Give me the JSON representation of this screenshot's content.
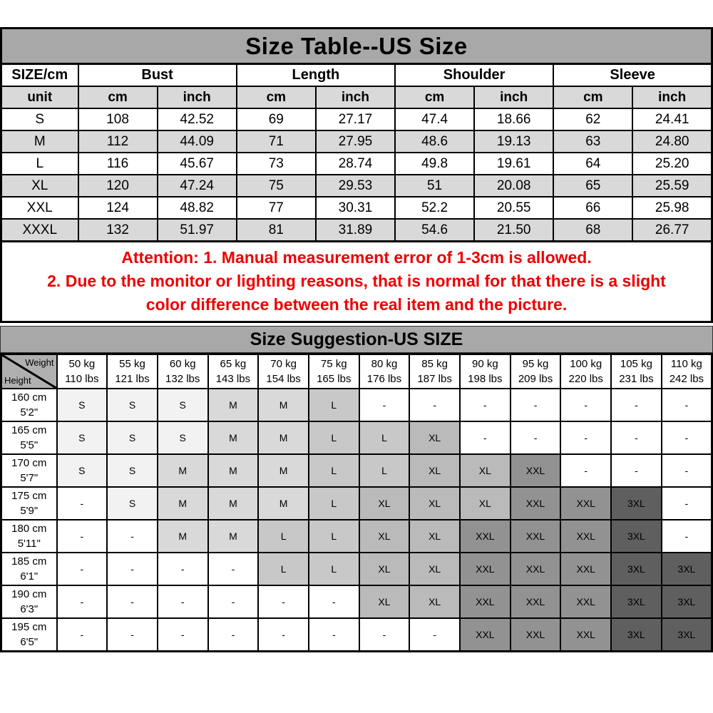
{
  "title": "Size Table--US Size",
  "colors": {
    "header_bar": "#a8a8a8",
    "corner_cell": "#b0b0b0",
    "shade_row": "#d9d9d9",
    "attention_text": "#ee0000",
    "border": "#000000"
  },
  "size_table": {
    "corner_header": "SIZE/cm",
    "groups": [
      "Bust",
      "Length",
      "Shoulder",
      "Sleeve"
    ],
    "unit_row": [
      "unit",
      "cm",
      "inch",
      "cm",
      "inch",
      "cm",
      "inch",
      "cm",
      "inch"
    ],
    "rows": [
      {
        "size": "S",
        "values": [
          "108",
          "42.52",
          "69",
          "27.17",
          "47.4",
          "18.66",
          "62",
          "24.41"
        ]
      },
      {
        "size": "M",
        "values": [
          "112",
          "44.09",
          "71",
          "27.95",
          "48.6",
          "19.13",
          "63",
          "24.80"
        ]
      },
      {
        "size": "L",
        "values": [
          "116",
          "45.67",
          "73",
          "28.74",
          "49.8",
          "19.61",
          "64",
          "25.20"
        ]
      },
      {
        "size": "XL",
        "values": [
          "120",
          "47.24",
          "75",
          "29.53",
          "51",
          "20.08",
          "65",
          "25.59"
        ]
      },
      {
        "size": "XXL",
        "values": [
          "124",
          "48.82",
          "77",
          "30.31",
          "52.2",
          "20.55",
          "66",
          "25.98"
        ]
      },
      {
        "size": "XXXL",
        "values": [
          "132",
          "51.97",
          "81",
          "31.89",
          "54.6",
          "21.50",
          "68",
          "26.77"
        ]
      }
    ]
  },
  "attention": {
    "lines": [
      "Attention:  1. Manual measurement error of 1-3cm is allowed.",
      "2. Due to the monitor or lighting reasons, that is normal for that there is a slight",
      "color difference between the real item and the picture."
    ]
  },
  "suggestion": {
    "title": "Size Suggestion-US SIZE",
    "corner": {
      "top": "Weight",
      "bottom": "Height"
    },
    "weights": [
      {
        "kg": "50 kg",
        "lbs": "110 lbs"
      },
      {
        "kg": "55 kg",
        "lbs": "121 lbs"
      },
      {
        "kg": "60 kg",
        "lbs": "132 lbs"
      },
      {
        "kg": "65 kg",
        "lbs": "143 lbs"
      },
      {
        "kg": "70 kg",
        "lbs": "154 lbs"
      },
      {
        "kg": "75 kg",
        "lbs": "165 lbs"
      },
      {
        "kg": "80 kg",
        "lbs": "176 lbs"
      },
      {
        "kg": "85 kg",
        "lbs": "187 lbs"
      },
      {
        "kg": "90 kg",
        "lbs": "198 lbs"
      },
      {
        "kg": "95 kg",
        "lbs": "209 lbs"
      },
      {
        "kg": "100 kg",
        "lbs": "220 lbs"
      },
      {
        "kg": "105 kg",
        "lbs": "231 lbs"
      },
      {
        "kg": "110 kg",
        "lbs": "242 lbs"
      }
    ],
    "size_colors": {
      "S": "#f2f2f2",
      "M": "#d9d9d9",
      "L": "#c8c8c8",
      "XL": "#bababa",
      "XXL": "#929292",
      "3XL": "#5f5f5f",
      "-": "#ffffff"
    },
    "rows": [
      {
        "height_cm": "160 cm",
        "height_ft": "5'2\"",
        "sizes": [
          "S",
          "S",
          "S",
          "M",
          "M",
          "L",
          "-",
          "-",
          "-",
          "-",
          "-",
          "-",
          "-"
        ]
      },
      {
        "height_cm": "165 cm",
        "height_ft": "5'5\"",
        "sizes": [
          "S",
          "S",
          "S",
          "M",
          "M",
          "L",
          "L",
          "XL",
          "-",
          "-",
          "-",
          "-",
          "-"
        ]
      },
      {
        "height_cm": "170 cm",
        "height_ft": "5'7\"",
        "sizes": [
          "S",
          "S",
          "M",
          "M",
          "M",
          "L",
          "L",
          "XL",
          "XL",
          "XXL",
          "-",
          "-",
          "-"
        ]
      },
      {
        "height_cm": "175 cm",
        "height_ft": "5'9\"",
        "sizes": [
          "-",
          "S",
          "M",
          "M",
          "M",
          "L",
          "XL",
          "XL",
          "XL",
          "XXL",
          "XXL",
          "3XL",
          "-"
        ]
      },
      {
        "height_cm": "180 cm",
        "height_ft": "5'11\"",
        "sizes": [
          "-",
          "-",
          "M",
          "M",
          "L",
          "L",
          "XL",
          "XL",
          "XXL",
          "XXL",
          "XXL",
          "3XL",
          "-"
        ]
      },
      {
        "height_cm": "185 cm",
        "height_ft": "6'1\"",
        "sizes": [
          "-",
          "-",
          "-",
          "-",
          "L",
          "L",
          "XL",
          "XL",
          "XXL",
          "XXL",
          "XXL",
          "3XL",
          "3XL"
        ]
      },
      {
        "height_cm": "190 cm",
        "height_ft": "6'3\"",
        "sizes": [
          "-",
          "-",
          "-",
          "-",
          "-",
          "-",
          "XL",
          "XL",
          "XXL",
          "XXL",
          "XXL",
          "3XL",
          "3XL"
        ]
      },
      {
        "height_cm": "195 cm",
        "height_ft": "6'5\"",
        "sizes": [
          "-",
          "-",
          "-",
          "-",
          "-",
          "-",
          "-",
          "-",
          "XXL",
          "XXL",
          "XXL",
          "3XL",
          "3XL"
        ]
      }
    ]
  }
}
